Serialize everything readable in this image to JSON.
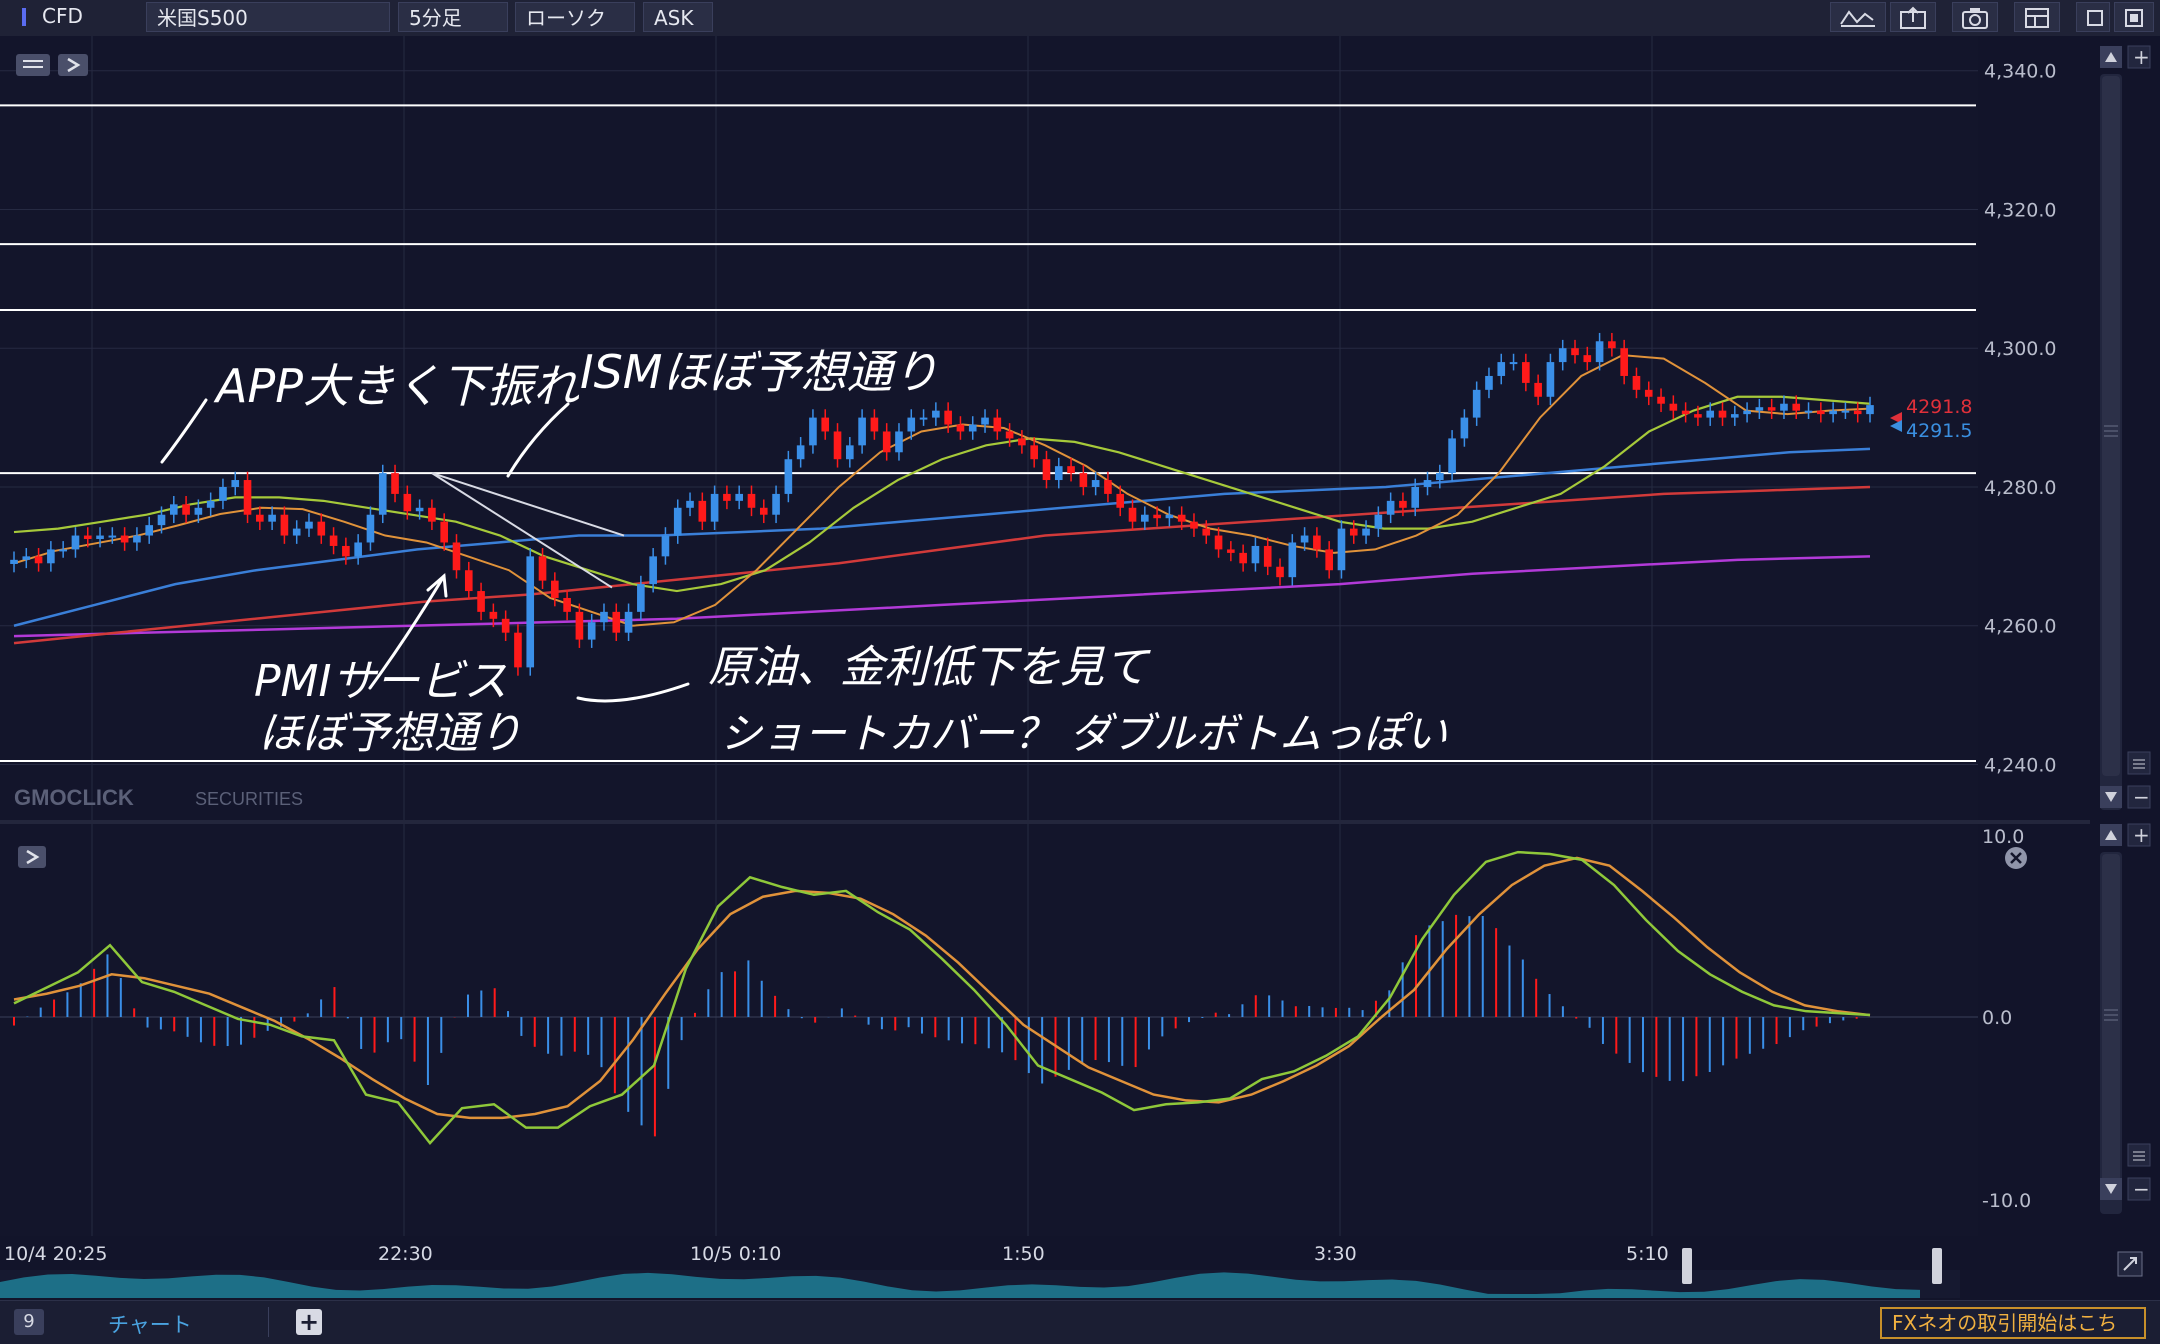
{
  "toolbar": {
    "category": "CFD",
    "symbol": "米国S500",
    "timeframe": "5分足",
    "chart_style": "ローソク",
    "price_side": "ASK",
    "icons": [
      "indicator-icon",
      "export-icon",
      "camera-icon",
      "layout-icon",
      "maximize-icon",
      "close-icon"
    ]
  },
  "watermark": {
    "brand": "GMOCLICK",
    "suffix": "SECURITIES"
  },
  "price_axis": {
    "ticks": [
      "4,340.0",
      "4,320.0",
      "4,300.0",
      "4,280.0",
      "4,260.0",
      "4,240.0"
    ]
  },
  "current_prices": {
    "ask": "4291.8",
    "bid": "4291.5",
    "ask_color": "#e0303a",
    "bid_color": "#3a8fe0"
  },
  "indicator_axis": {
    "ticks": [
      "10.0",
      "0.0",
      "-10.0"
    ]
  },
  "time_axis": {
    "labels": [
      "10/4 20:25",
      "22:30",
      "10/5 0:10",
      "1:50",
      "3:30",
      "5:10"
    ]
  },
  "annotations": {
    "app": "APP大きく下振れ",
    "ism": "ISMほぼ予想通り",
    "pmi_line1": "PMIサービス",
    "pmi_line2": "ほぼ予想通り",
    "note_line1": "原油、金利低下を見て",
    "note_line2": "ショートカバー？ ダブルボトムっぽい"
  },
  "bottom": {
    "tab_count": "9",
    "tab_label": "チャート",
    "add_label": "+",
    "promo": "FXネオの取引開始はこち"
  },
  "colors": {
    "up_candle": "#3a8fe8",
    "down_candle": "#ff1a1a",
    "ma_short": "#e0923a",
    "ma_mid": "#a6c93a",
    "ma_long": "#3a7fd8",
    "ma_red": "#d23a3a",
    "ma_purple": "#b23ad8",
    "macd": "#8fc83a",
    "signal": "#e0923a"
  },
  "chart_data": {
    "type": "candlestick",
    "instrument": "米国S500",
    "timeframe": "5分足",
    "ylim": [
      4232,
      4345
    ],
    "horizontal_lines": [
      4335,
      4315,
      4305.5,
      4282,
      4240.5
    ],
    "close": [
      4269.5,
      4270,
      4269,
      4271,
      4271,
      4273,
      4272.5,
      4273,
      4273,
      4272,
      4273,
      4274.5,
      4276,
      4277.5,
      4276,
      4277,
      4278,
      4280,
      4281,
      4276,
      4275,
      4276,
      4273,
      4274,
      4275,
      4273,
      4271.5,
      4270,
      4272,
      4276,
      4282,
      4279,
      4276.5,
      4277,
      4275,
      4272,
      4268,
      4265,
      4262,
      4261,
      4259,
      4254,
      4270,
      4266.5,
      4264,
      4262,
      4258,
      4260.5,
      4262,
      4259,
      4262,
      4266,
      4270,
      4273,
      4277,
      4278,
      4275,
      4279,
      4278,
      4279,
      4277,
      4276,
      4279,
      4284,
      4286,
      4290,
      4288,
      4284,
      4286,
      4290,
      4288,
      4285,
      4288,
      4290,
      4290,
      4291,
      4289,
      4288,
      4289,
      4290,
      4288,
      4287,
      4286,
      4284,
      4281,
      4283,
      4282,
      4280,
      4281,
      4279,
      4277,
      4275,
      4276,
      4275.5,
      4276,
      4275,
      4274,
      4273,
      4271,
      4270.5,
      4269,
      4271.5,
      4268.5,
      4267,
      4272,
      4273,
      4271,
      4268,
      4274,
      4273,
      4274,
      4276,
      4278,
      4277,
      4280,
      4281,
      4282,
      4287,
      4290,
      4294,
      4296,
      4298,
      4298,
      4295,
      4293,
      4298,
      4300,
      4299,
      4298,
      4301,
      4300,
      4296,
      4294,
      4293,
      4292,
      4291,
      4290.5,
      4290,
      4291,
      4290,
      4290.5,
      4291,
      4291.5,
      4291,
      4292,
      4291,
      4291,
      4290.5,
      4291,
      4291,
      4290.5,
      4291.8
    ],
    "ma_short": [
      4269,
      4270.8,
      4271.9,
      4273,
      4274.5,
      4276.1,
      4277,
      4276.8,
      4275,
      4273,
      4272,
      4270,
      4268,
      4264,
      4262,
      4260,
      4260.5,
      4263,
      4268,
      4274,
      4280,
      4285,
      4288,
      4289,
      4288.5,
      4286,
      4283,
      4279,
      4276,
      4274,
      4273,
      4271.5,
      4270.5,
      4271,
      4273,
      4276,
      4282,
      4290,
      4296,
      4299,
      4298.5,
      4295,
      4291,
      4290.5,
      4291,
      4291.3
    ],
    "ma_mid": [
      4273.5,
      4274,
      4275,
      4276,
      4277.5,
      4278.5,
      4278.5,
      4278,
      4277,
      4276,
      4275,
      4273,
      4270,
      4268,
      4266,
      4265,
      4266,
      4268,
      4272,
      4277,
      4281,
      4284,
      4286,
      4287,
      4286.5,
      4285,
      4283,
      4281,
      4279,
      4277,
      4275,
      4274,
      4274,
      4275,
      4277,
      4279,
      4283,
      4288,
      4291,
      4293,
      4293,
      4292.5,
      4292
    ],
    "ma_long": [
      4260,
      4263,
      4266,
      4268,
      4269.5,
      4271,
      4272,
      4273,
      4273,
      4273.5,
      4274,
      4275,
      4276,
      4277,
      4278,
      4279,
      4279.5,
      4280,
      4281,
      4282,
      4283,
      4284,
      4285,
      4285.5
    ],
    "ma_red": [
      4257.5,
      4259,
      4260.5,
      4262,
      4263.5,
      4264.5,
      4266,
      4267.5,
      4269,
      4271,
      4273,
      4274,
      4275,
      4276,
      4277,
      4278,
      4279,
      4279.5,
      4280
    ],
    "ma_purple": [
      4258.5,
      4259,
      4259.5,
      4260,
      4260.5,
      4261,
      4262,
      4263,
      4264,
      4265,
      4266,
      4267.5,
      4268.5,
      4269.5,
      4270
    ],
    "macd": [
      0.7,
      1.5,
      2.3,
      3.7,
      1.8,
      1.3,
      0.6,
      -0.1,
      -0.4,
      -1,
      -1.2,
      -4,
      -4.4,
      -6.5,
      -4.7,
      -4.5,
      -5.7,
      -5.7,
      -4.6,
      -4,
      -2.5,
      2.5,
      5.7,
      7.2,
      6.7,
      6.3,
      6.5,
      5.4,
      4.5,
      3,
      1.4,
      -0.4,
      -2.5,
      -3.2,
      -3.9,
      -4.8,
      -4.5,
      -4.4,
      -4.2,
      -3.2,
      -2.8,
      -2,
      -1,
      1,
      4,
      6.3,
      8,
      8.5,
      8.4,
      8.1,
      6.8,
      5,
      3.4,
      2.2,
      1.3,
      0.6,
      0.3,
      0.2,
      0.1
    ],
    "signal": [
      0.9,
      1.2,
      1.6,
      2.2,
      2,
      1.6,
      1.2,
      0.5,
      -0.2,
      -1.1,
      -2.1,
      -3.2,
      -4.2,
      -5,
      -5.2,
      -5.2,
      -5,
      -4.6,
      -3.3,
      -1.2,
      1.2,
      3.5,
      5.3,
      6.2,
      6.5,
      6.4,
      6.1,
      5.3,
      4.2,
      2.8,
      1.2,
      -0.4,
      -1.5,
      -2.6,
      -3.3,
      -4,
      -4.3,
      -4.4,
      -4,
      -3.3,
      -2.5,
      -1.5,
      0,
      1.4,
      3.5,
      5.3,
      6.8,
      7.8,
      8.2,
      7.8,
      6.5,
      5.1,
      3.6,
      2.3,
      1.3,
      0.6,
      0.3,
      0.1
    ],
    "macd_ylim": [
      -10,
      10
    ],
    "x_labels": [
      "10/4 20:25",
      "22:30",
      "10/5 0:10",
      "1:50",
      "3:30",
      "5:10"
    ]
  }
}
